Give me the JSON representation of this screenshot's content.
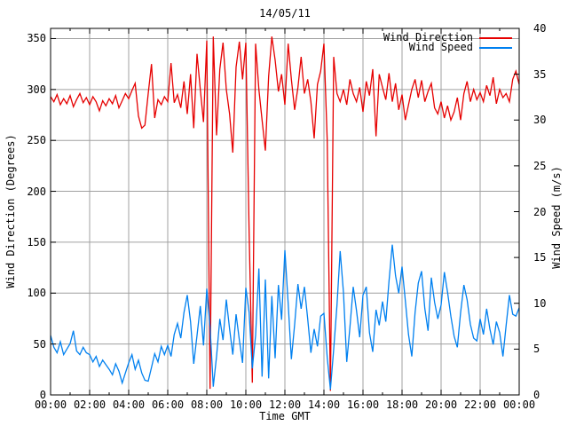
{
  "chart_data": {
    "type": "line",
    "title": "14/05/11",
    "xlabel": "Time GMT",
    "x_tick_interval_minutes": 120,
    "x_minor_tick_interval_minutes": 60,
    "x_range_minutes": [
      0,
      1440
    ],
    "x_tick_labels": [
      "00:00",
      "02:00",
      "04:00",
      "06:00",
      "08:00",
      "10:00",
      "12:00",
      "14:00",
      "16:00",
      "18:00",
      "20:00",
      "22:00",
      "00:00"
    ],
    "grid": true,
    "legend": {
      "position": "top-right-inside"
    },
    "colors": {
      "background": "#ffffff",
      "border": "#000000",
      "grid": "#a0a0a0",
      "wind_direction": "#e60000",
      "wind_speed": "#0080f0"
    },
    "axes": {
      "left": {
        "label": "Wind Direction (Degrees)",
        "range": [
          0,
          360
        ],
        "tick_step": 50,
        "tick_labels": [
          "0",
          "50",
          "100",
          "150",
          "200",
          "250",
          "300",
          "350"
        ]
      },
      "right": {
        "label": "Wind Speed (m/s)",
        "range": [
          0,
          40
        ],
        "tick_step": 5,
        "tick_labels": [
          "0",
          "5",
          "10",
          "15",
          "20",
          "25",
          "30",
          "35",
          "40"
        ]
      }
    },
    "sample_interval_minutes": 10,
    "series": [
      {
        "name": "Wind Direction",
        "axis": "left",
        "color": "#e60000",
        "values": [
          293,
          288,
          295,
          285,
          291,
          286,
          294,
          283,
          290,
          296,
          287,
          292,
          285,
          293,
          288,
          279,
          289,
          284,
          291,
          286,
          294,
          282,
          289,
          296,
          291,
          299,
          306,
          274,
          262,
          265,
          296,
          325,
          272,
          290,
          285,
          293,
          288,
          326,
          287,
          295,
          282,
          308,
          276,
          315,
          262,
          335,
          300,
          268,
          348,
          6,
          352,
          255,
          320,
          346,
          300,
          276,
          238,
          322,
          347,
          310,
          346,
          160,
          12,
          345,
          300,
          270,
          240,
          313,
          352,
          329,
          298,
          315,
          285,
          345,
          310,
          280,
          302,
          332,
          296,
          310,
          288,
          252,
          305,
          318,
          345,
          250,
          4,
          332,
          296,
          288,
          300,
          285,
          310,
          296,
          288,
          302,
          278,
          308,
          294,
          320,
          254,
          315,
          302,
          290,
          316,
          288,
          306,
          280,
          295,
          270,
          285,
          300,
          310,
          292,
          309,
          288,
          298,
          306,
          282,
          276,
          288,
          272,
          284,
          270,
          278,
          292,
          270,
          296,
          308,
          288,
          300,
          290,
          297,
          288,
          304,
          294,
          312,
          286,
          300,
          292,
          296,
          288,
          310,
          318,
          305
        ]
      },
      {
        "name": "Wind Speed",
        "axis": "right",
        "color": "#0080f0",
        "values": [
          6.5,
          5.2,
          4.6,
          5.8,
          4.4,
          5.0,
          5.6,
          7.0,
          4.8,
          4.4,
          5.2,
          4.6,
          4.4,
          3.6,
          4.2,
          3.1,
          3.8,
          3.3,
          2.8,
          2.2,
          3.4,
          2.6,
          1.3,
          2.4,
          3.5,
          4.4,
          2.8,
          3.8,
          2.4,
          1.6,
          1.5,
          3.0,
          4.5,
          3.6,
          5.3,
          4.4,
          5.4,
          4.2,
          6.6,
          7.8,
          6.2,
          9.0,
          10.9,
          8.0,
          3.4,
          6.5,
          9.7,
          5.4,
          11.6,
          7.4,
          0.9,
          4.2,
          8.3,
          6.0,
          10.4,
          7.2,
          4.4,
          8.8,
          6.0,
          3.5,
          11.7,
          9.0,
          2.9,
          6.5,
          13.8,
          2.0,
          12.6,
          1.8,
          10.8,
          4.0,
          12.0,
          8.2,
          15.8,
          10.0,
          3.9,
          7.7,
          12.1,
          9.4,
          11.8,
          8.3,
          4.6,
          7.2,
          5.3,
          8.6,
          8.9,
          4.1,
          0.6,
          5.0,
          9.8,
          15.7,
          11.2,
          3.6,
          7.4,
          11.8,
          9.2,
          6.3,
          10.9,
          11.8,
          6.8,
          4.7,
          9.3,
          7.6,
          10.2,
          8.0,
          12.4,
          16.4,
          13.0,
          11.1,
          14.0,
          10.3,
          6.6,
          4.2,
          9.0,
          12.2,
          13.5,
          9.4,
          7.0,
          12.8,
          10.1,
          8.3,
          9.8,
          13.4,
          11.2,
          8.6,
          6.4,
          5.2,
          9.0,
          12.0,
          10.4,
          7.7,
          6.2,
          5.9,
          8.3,
          6.6,
          9.4,
          7.2,
          5.5,
          8.0,
          6.8,
          4.2,
          7.6,
          10.9,
          8.8,
          8.6,
          9.5
        ]
      }
    ]
  }
}
